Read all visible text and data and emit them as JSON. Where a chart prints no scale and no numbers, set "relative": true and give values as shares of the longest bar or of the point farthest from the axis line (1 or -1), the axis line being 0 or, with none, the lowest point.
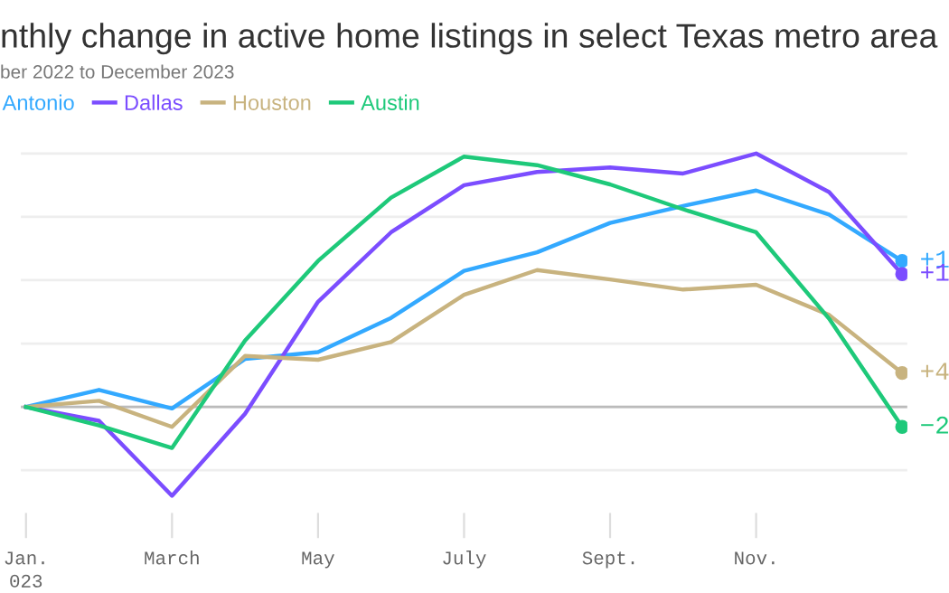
{
  "chart_data": {
    "type": "line",
    "title": "nthly change in active home listings in select Texas metro area",
    "subtitle": "ber 2022 to December 2023",
    "categories": [
      "Jan.\n023",
      null,
      "March",
      null,
      "May",
      null,
      "July",
      null,
      "Sept.",
      null,
      "Nov.",
      null,
      null
    ],
    "relative": true,
    "series": [
      {
        "name": "Antonio",
        "color": "#33a9ff",
        "values": [
          0,
          0.067,
          -0.006,
          0.189,
          0.216,
          0.351,
          0.537,
          0.61,
          0.726,
          0.793,
          0.854,
          0.759,
          0.576
        ]
      },
      {
        "name": "Dallas",
        "color": "#7b4dff",
        "values": [
          0,
          -0.055,
          -0.351,
          -0.027,
          0.415,
          0.689,
          0.875,
          0.927,
          0.945,
          0.921,
          1,
          0.848,
          0.524
        ]
      },
      {
        "name": "Houston",
        "color": "#c8b37f",
        "values": [
          0,
          0.024,
          -0.079,
          0.201,
          0.186,
          0.256,
          0.442,
          0.54,
          0.503,
          0.463,
          0.482,
          0.363,
          0.134
        ]
      },
      {
        "name": "Austin",
        "color": "#1ec97a",
        "values": [
          0,
          -0.073,
          -0.162,
          0.262,
          0.576,
          0.826,
          0.988,
          0.954,
          0.878,
          0.78,
          0.689,
          0.348,
          -0.079
        ]
      }
    ],
    "annotations": [
      "+1",
      "+1",
      "+4",
      "−2"
    ],
    "grid": "y",
    "legend": "top left",
    "tick_labels": "x",
    "line_style": "solid"
  }
}
